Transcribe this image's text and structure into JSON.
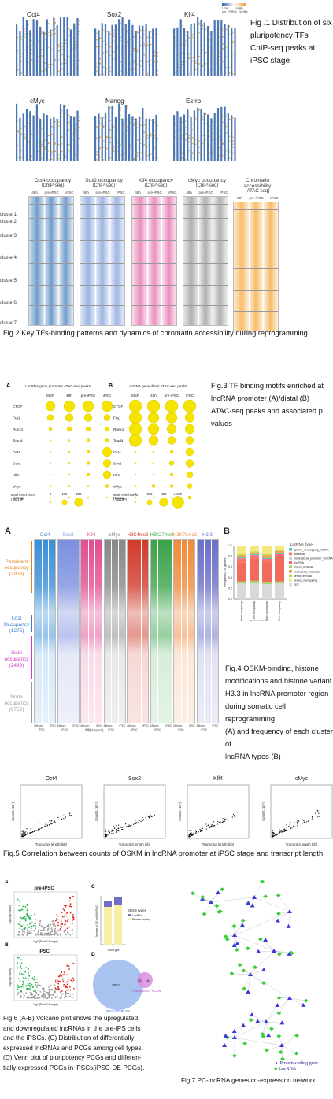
{
  "fig1": {
    "panels": [
      "Oct4",
      "Sox2",
      "Klf4",
      "cMyc",
      "Nanog",
      "Esrrb"
    ],
    "legend": {
      "low": "Low",
      "high": "High",
      "marker": "pre_ESRVK_lncRNA"
    },
    "caption": [
      "Fig .1 Distribution of six",
      "pluripotency TFs",
      "ChIP-seq peaks at",
      "iPSC stage"
    ]
  },
  "fig2": {
    "panels": [
      {
        "title": [
          "Oct4 occupancy",
          "(ChIP-seq)"
        ],
        "color": "#2b6cb0"
      },
      {
        "title": [
          "Sox2 occupancy",
          "(ChIP-seq)"
        ],
        "color": "#6b8fd6"
      },
      {
        "title": [
          "Klf4 occupancy",
          "(ChIP-seq)"
        ],
        "color": "#e0559a"
      },
      {
        "title": [
          "cMyc occupancy",
          "(ChIP-seq)"
        ],
        "color": "#888888"
      },
      {
        "title": [
          "Chromatin accessibility",
          "(ATAC-seq)"
        ],
        "color": "#f59a1b"
      }
    ],
    "cols": [
      "48h",
      "pre-iPSC",
      "iPSC"
    ],
    "clusters": [
      "cluster1",
      "cluster2",
      "cluster3",
      "cluster4",
      "cluster5",
      "cluster6",
      "cluster7"
    ],
    "caption": "Fig.2 Key TFs-binding patterns and dynamics of chromatin accessibility during reprogramming"
  },
  "fig3": {
    "panelA": {
      "letter": "A",
      "title": "LncRNA gene promoter ATAC-seq peaks"
    },
    "panelB": {
      "letter": "B",
      "title": "LncRNA gene distal ATAC-seq peaks"
    },
    "cols": [
      "MEF",
      "48h",
      "pre-iPSC",
      "iPSC"
    ],
    "rows": [
      "CTCF",
      "Fra1",
      "Runx1",
      "Tead4",
      "Oct4",
      "Sox2",
      "Klf4",
      "cMyc",
      "Nanog"
    ],
    "legendA": {
      "label": [
        "Motif enrichment",
        "(-log10P)"
      ],
      "ticks": [
        "0",
        "100",
        "200"
      ]
    },
    "legendB": {
      "label": [
        "Motif enrichment",
        "(-log10P)"
      ],
      "ticks": [
        "0",
        "200",
        "400",
        "≥ 600"
      ]
    },
    "caption": [
      "Fig.3 TF binding motifs enriched at",
      "lncRNA promoter (A)/distal (B)",
      "ATAC-seq peaks and associated p",
      "values"
    ]
  },
  "fig4": {
    "letterA": "A",
    "letterB": "B",
    "tracks": [
      {
        "name": "Oct4",
        "color": "#3a8fd8"
      },
      {
        "name": "Sox2",
        "color": "#7b8fe0"
      },
      {
        "name": "Klf4",
        "color": "#e24d91"
      },
      {
        "name": "cMyc",
        "color": "#888888"
      },
      {
        "name": "H3K4me3",
        "color": "#d23a2a"
      },
      {
        "name": "H3K27me3",
        "color": "#3aa34a"
      },
      {
        "name": "H3K79me2",
        "color": "#f08a3a"
      },
      {
        "name": "H3.3",
        "color": "#6a6fc8"
      }
    ],
    "groups": [
      {
        "name": "Persistent",
        "sub": "occupancy",
        "count": "(2908)",
        "color": "#e67e22"
      },
      {
        "name": "Lost",
        "sub": "Occupancy",
        "count": "(1275)",
        "color": "#3b7dd8"
      },
      {
        "name": "Gain",
        "sub": "occupancy",
        "count": "(2439)",
        "color": "#d633c8"
      },
      {
        "name": "None",
        "sub": "occupancy",
        "count": "(6752)",
        "color": "#999999"
      }
    ],
    "xunit": "log2(rpkm)",
    "sublabels": [
      "48h",
      "pre-iPSC",
      "iPSC"
    ],
    "bar": {
      "ylabel": "Frequency of genes",
      "xlabel": "Gene groups",
      "yticks": [
        "0.0",
        "0.2",
        "0.4",
        "0.6",
        "0.8",
        "1.0"
      ],
      "categories": [
        "Persistent occupancy",
        "Lost occupancy",
        "Gain occupancy",
        "None occupancy"
      ],
      "legend_title": "LncRNA_type",
      "legend": [
        {
          "name": "3prime_overlapping_ncRNA",
          "color": "#5ec8c8"
        },
        {
          "name": "antisense",
          "color": "#ff6f6f"
        },
        {
          "name": "bidirectional_promoter_lncRNA",
          "color": "#cfcfcf"
        },
        {
          "name": "lincRNA",
          "color": "#f06b5c"
        },
        {
          "name": "macro_lncRNA",
          "color": "#a8d26a"
        },
        {
          "name": "processed_transcript",
          "color": "#ef9f4d"
        },
        {
          "name": "sense_intronic",
          "color": "#c3d84a"
        },
        {
          "name": "sense_overlapping",
          "color": "#f3e87c"
        },
        {
          "name": "TEC",
          "color": "#d9d9d9"
        }
      ]
    },
    "caption": [
      "Fig.4 OSKM-binding, histone",
      "modifications and histone variant",
      "H3.3 in lncRNA promoter region",
      "during somatic cell reprogramming",
      "(A) and frequency of each cluster of",
      "lncRNA types (B)"
    ]
  },
  "fig5": {
    "panels": [
      "Oct4",
      "Sox2",
      "Klf4",
      "cMyc"
    ],
    "ylabel": "Counts (10⁴)",
    "xlabel": "Transcript length (kb)",
    "caption": "Fig.5 Correlation between counts of OSKM in lncRNA promoter at iPSC stage and transcript length"
  },
  "fig6": {
    "A": {
      "letter": "A",
      "title": "pre-iPSC"
    },
    "B": {
      "letter": "B",
      "title": "iPSC"
    },
    "C": {
      "letter": "C",
      "title": "Gene types",
      "legend": [
        "LncRNA",
        "Protein-coding"
      ],
      "xlabel": "Cell Type",
      "ylabel": "Number of DE lncRNA/PCG"
    },
    "D": {
      "letter": "D",
      "venn_left": "8957",
      "venn_mid": "101",
      "venn_right": "187",
      "left_label": "iPSC-DE-PCGs",
      "right_label": "Pluripotency PCGs"
    },
    "volcano_x": "log2(Fold Change)",
    "volcano_y": "-log10(p-value)",
    "caption": [
      "Fig.6 (A-B) Volcano plot shows the upregulated",
      "and downregulated lncRNAs in the pre-iPS cells",
      "and the iPSCs. (C) Distribution of differentially",
      "expressed lncRNAs and PCGs among cell types.",
      "(D) Venn plot of pluripotency PCGs and differen-",
      "tially expressed PCGs in iPSCs(iPSC-DE-PCGs)."
    ]
  },
  "fig7": {
    "legend": [
      "Protein-coding gene",
      "LncRNA"
    ],
    "caption": "Fig.7 PC-lncRNA genes co-expression network"
  },
  "colors": {
    "blue": "#2b5ea8",
    "red": "#d9342b",
    "green": "#2fa84f",
    "yellow": "#f5e000"
  }
}
